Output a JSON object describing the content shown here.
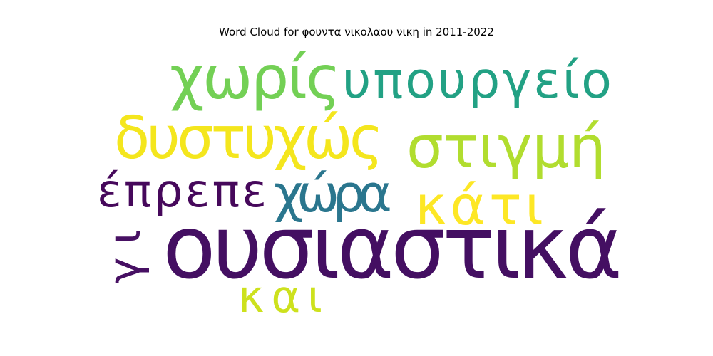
{
  "chart_data": {
    "type": "wordcloud",
    "title": "Word Cloud for φουντα νικολαου νικη in 2011-2022",
    "words": [
      {
        "text": "ουσιαστικά",
        "weight": 1.0,
        "color": "#440f62",
        "rotated": false
      },
      {
        "text": "δυστυχώς",
        "weight": 0.7,
        "color": "#f4e61d",
        "rotated": false
      },
      {
        "text": "υπουργείο",
        "weight": 0.62,
        "color": "#22a184",
        "rotated": false
      },
      {
        "text": "στιγμή",
        "weight": 0.62,
        "color": "#b1dd2f",
        "rotated": false
      },
      {
        "text": "χωρίς",
        "weight": 0.58,
        "color": "#73d055",
        "rotated": false
      },
      {
        "text": "χώρα",
        "weight": 0.52,
        "color": "#2a768e",
        "rotated": false
      },
      {
        "text": "κάτι",
        "weight": 0.52,
        "color": "#fde725",
        "rotated": false
      },
      {
        "text": "έπρεπε",
        "weight": 0.5,
        "color": "#46085b",
        "rotated": false
      },
      {
        "text": "και",
        "weight": 0.44,
        "color": "#cde11d",
        "rotated": false
      },
      {
        "text": "γι",
        "weight": 0.44,
        "color": "#471063",
        "rotated": true
      }
    ]
  }
}
